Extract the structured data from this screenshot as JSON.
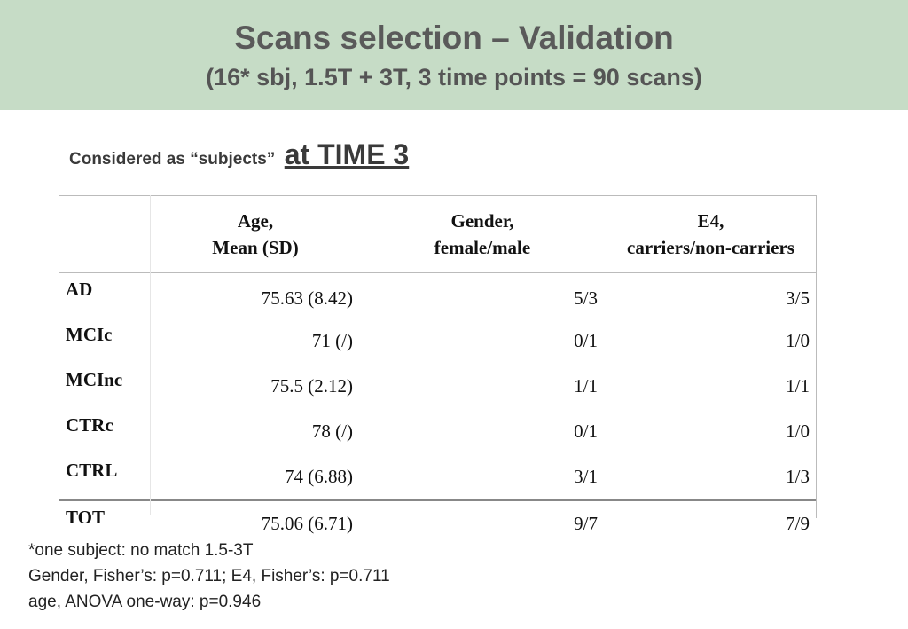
{
  "header": {
    "title": "Scans selection – Validation",
    "subtitle": "(16* sbj, 1.5T + 3T, 3 time points = 90 scans)"
  },
  "considered": {
    "lead": "Considered as “subjects”",
    "emphasis": "at TIME 3"
  },
  "table": {
    "columns": [
      {
        "line1": "Age,",
        "line2": "Mean (SD)"
      },
      {
        "line1": "Gender,",
        "line2": "female/male"
      },
      {
        "line1": "E4,",
        "line2": "carriers/non-carriers"
      }
    ],
    "rows": [
      {
        "label": "AD",
        "age": "75.63 (8.42)",
        "gender": "5/3",
        "e4": "3/5"
      },
      {
        "label": "MCIc",
        "age": "71 (/)",
        "gender": "0/1",
        "e4": "1/0"
      },
      {
        "label": "MCInc",
        "age": "75.5 (2.12)",
        "gender": "1/1",
        "e4": "1/1"
      },
      {
        "label": "CTRc",
        "age": "78 (/)",
        "gender": "0/1",
        "e4": "1/0"
      },
      {
        "label": "CTRL",
        "age": "74 (6.88)",
        "gender": "3/1",
        "e4": "1/3"
      }
    ],
    "total": {
      "label": "TOT",
      "age": "75.06 (6.71)",
      "gender": "9/7",
      "e4": "7/9"
    }
  },
  "notes": [
    "*one subject: no match 1.5-3T",
    "Gender, Fisher’s: p=0.711; E4, Fisher’s: p=0.711",
    "age, ANOVA one-way: p=0.946"
  ]
}
